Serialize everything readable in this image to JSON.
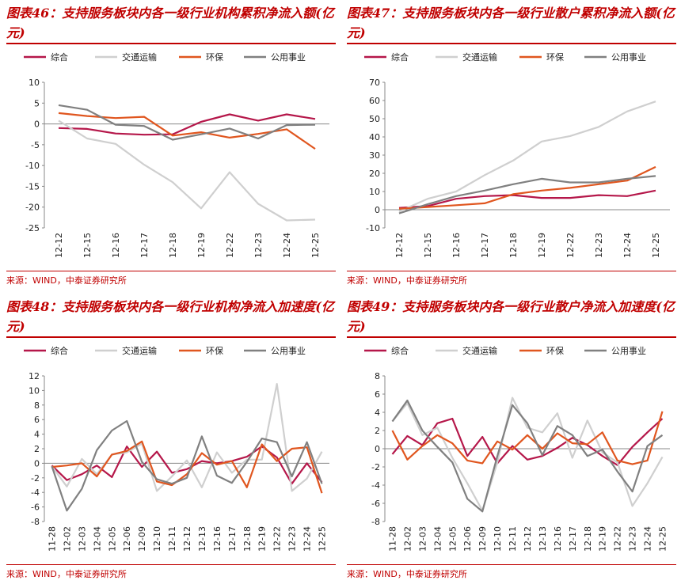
{
  "chart_data": [
    {
      "type": "line",
      "title": "图表46：支持服务板块内各一级行业机构累积净流入额(亿元)",
      "source": "来源：WIND，中泰证券研究所",
      "categories": [
        "12-12",
        "12-15",
        "12-16",
        "12-17",
        "12-18",
        "12-19",
        "12-22",
        "12-23",
        "12-24",
        "12-25"
      ],
      "series": [
        {
          "name": "综合",
          "color": "#b5174a",
          "values": [
            -1,
            -1.2,
            -2.3,
            -2.6,
            -2.5,
            0.5,
            2.3,
            0.8,
            2.3,
            1.2
          ]
        },
        {
          "name": "交通运输",
          "color": "#cfcfcf",
          "values": [
            0.8,
            -3.5,
            -4.8,
            -9.8,
            -14,
            -20.3,
            -11.6,
            -19.2,
            -23.2,
            -23
          ]
        },
        {
          "name": "环保",
          "color": "#e0561f",
          "values": [
            2.6,
            1.9,
            1.4,
            1.7,
            -2.8,
            -2,
            -3.3,
            -2.4,
            -1.3,
            -6
          ]
        },
        {
          "name": "公用事业",
          "color": "#808080",
          "values": [
            4.5,
            3.4,
            -0.2,
            -0.5,
            -3.8,
            -2.5,
            -1.1,
            -3.5,
            -0.3,
            -0.2
          ]
        }
      ],
      "ylim": [
        -25,
        10
      ],
      "yticks": [
        -25,
        -20,
        -15,
        -10,
        -5,
        0,
        5,
        10
      ],
      "legend": "top"
    },
    {
      "type": "line",
      "title": "图表47：支持服务板块内各一级行业散户累积净流入额(亿元)",
      "source": "来源：WIND，中泰证券研究所",
      "categories": [
        "12-12",
        "12-15",
        "12-16",
        "12-17",
        "12-18",
        "12-19",
        "12-22",
        "12-23",
        "12-24",
        "12-25"
      ],
      "series": [
        {
          "name": "综合",
          "color": "#b5174a",
          "values": [
            1,
            2,
            6,
            7.5,
            8,
            6.5,
            6.5,
            8,
            7.5,
            10.5
          ]
        },
        {
          "name": "交通运输",
          "color": "#cfcfcf",
          "values": [
            -1,
            6,
            10,
            19,
            27,
            37.5,
            40.5,
            45.5,
            54,
            59.5
          ]
        },
        {
          "name": "环保",
          "color": "#e0561f",
          "values": [
            0.5,
            1.5,
            2.5,
            3.5,
            8.5,
            10.5,
            12,
            14,
            16,
            23.5
          ]
        },
        {
          "name": "公用事业",
          "color": "#808080",
          "values": [
            -2,
            3,
            7.5,
            10.5,
            14,
            17,
            15,
            15,
            17,
            18.5
          ]
        }
      ],
      "ylim": [
        -10,
        70
      ],
      "yticks": [
        -10,
        0,
        10,
        20,
        30,
        40,
        50,
        60,
        70
      ],
      "legend": "top"
    },
    {
      "type": "line",
      "title": "图表48：支持服务板块内各一级行业机构净流入加速度(亿元)",
      "source": "来源：WIND，中泰证券研究所",
      "categories": [
        "11-28",
        "12-02",
        "12-03",
        "12-04",
        "12-05",
        "12-06",
        "12-09",
        "12-10",
        "12-11",
        "12-12",
        "12-13",
        "12-16",
        "12-17",
        "12-18",
        "12-19",
        "12-22",
        "12-23",
        "12-24",
        "12-25"
      ],
      "series": [
        {
          "name": "综合",
          "color": "#b5174a",
          "values": [
            -0.3,
            -2.3,
            -1.5,
            -0.3,
            -1.9,
            2.3,
            -0.5,
            1.6,
            -1.3,
            -0.8,
            0.3,
            0,
            0.3,
            0.9,
            2.3,
            0.8,
            -2.8,
            0,
            -2.6
          ]
        },
        {
          "name": "交通运输",
          "color": "#cfcfcf",
          "values": [
            -0.4,
            -3.2,
            0.6,
            -1.5,
            1.2,
            1.5,
            2.7,
            -3.8,
            -1.8,
            0.4,
            -3.3,
            1.5,
            -1.3,
            0.5,
            0.5,
            10.9,
            -3.8,
            -2.1,
            1.6
          ]
        },
        {
          "name": "环保",
          "color": "#e0561f",
          "values": [
            -0.5,
            -0.3,
            0,
            -1.8,
            1.2,
            1.7,
            3,
            -2.5,
            -3,
            -1.5,
            1.4,
            -0.2,
            0.3,
            -3.3,
            2.6,
            0.3,
            2,
            2.2,
            -4.1
          ]
        },
        {
          "name": "公用事业",
          "color": "#808080",
          "values": [
            -0.4,
            -6.5,
            -3.5,
            1.8,
            4.5,
            5.8,
            0.2,
            -2.2,
            -2.8,
            -2,
            3.7,
            -1.7,
            -2.7,
            0.2,
            3.4,
            2.9,
            -1.8,
            2.9,
            -2.8
          ]
        }
      ],
      "ylim": [
        -8,
        12
      ],
      "yticks": [
        -8,
        -6,
        -4,
        -2,
        0,
        2,
        4,
        6,
        8,
        10,
        12
      ],
      "legend": "top"
    },
    {
      "type": "line",
      "title": "图表49：支持服务板块内各一级行业散户净流入加速度(亿元)",
      "source": "来源：WIND，中泰证券研究所",
      "categories": [
        "11-28",
        "12-02",
        "12-03",
        "12-04",
        "12-05",
        "12-06",
        "12-09",
        "12-10",
        "12-11",
        "12-12",
        "12-13",
        "12-16",
        "12-17",
        "12-18",
        "12-19",
        "12-22",
        "12-23",
        "12-24",
        "12-25"
      ],
      "series": [
        {
          "name": "综合",
          "color": "#b5174a",
          "values": [
            -0.6,
            1.4,
            0.4,
            2.8,
            3.3,
            -0.8,
            1.3,
            -1.6,
            0.3,
            -1.2,
            -0.8,
            0.1,
            1.2,
            0.4,
            -0.8,
            -1.8,
            0.2,
            1.8,
            3.3
          ]
        },
        {
          "name": "交通运输",
          "color": "#cfcfcf",
          "values": [
            3,
            5,
            1.5,
            2.3,
            -1,
            -3.8,
            -6.8,
            -1.5,
            5.6,
            2.3,
            1.8,
            3.9,
            -1,
            3.1,
            -0.4,
            -1.5,
            -6.3,
            -3.8,
            -0.9
          ]
        },
        {
          "name": "环保",
          "color": "#e0561f",
          "values": [
            2,
            -1.2,
            0.3,
            1.5,
            0.6,
            -1.3,
            -1.6,
            0.8,
            -0.1,
            1.5,
            0,
            1.7,
            0.6,
            0.5,
            1.8,
            -1.3,
            -1.7,
            -1.3,
            4.1
          ]
        },
        {
          "name": "公用事业",
          "color": "#808080",
          "values": [
            3,
            5.3,
            2,
            0.2,
            -1.5,
            -5.5,
            -6.9,
            -0.8,
            4.8,
            2.8,
            -0.7,
            2.5,
            1.5,
            -0.8,
            -0.1,
            -2.5,
            -4.7,
            0.3,
            1.5
          ]
        }
      ],
      "ylim": [
        -8,
        8
      ],
      "yticks": [
        -8,
        -6,
        -4,
        -2,
        0,
        2,
        4,
        6,
        8
      ],
      "legend": "top"
    }
  ]
}
